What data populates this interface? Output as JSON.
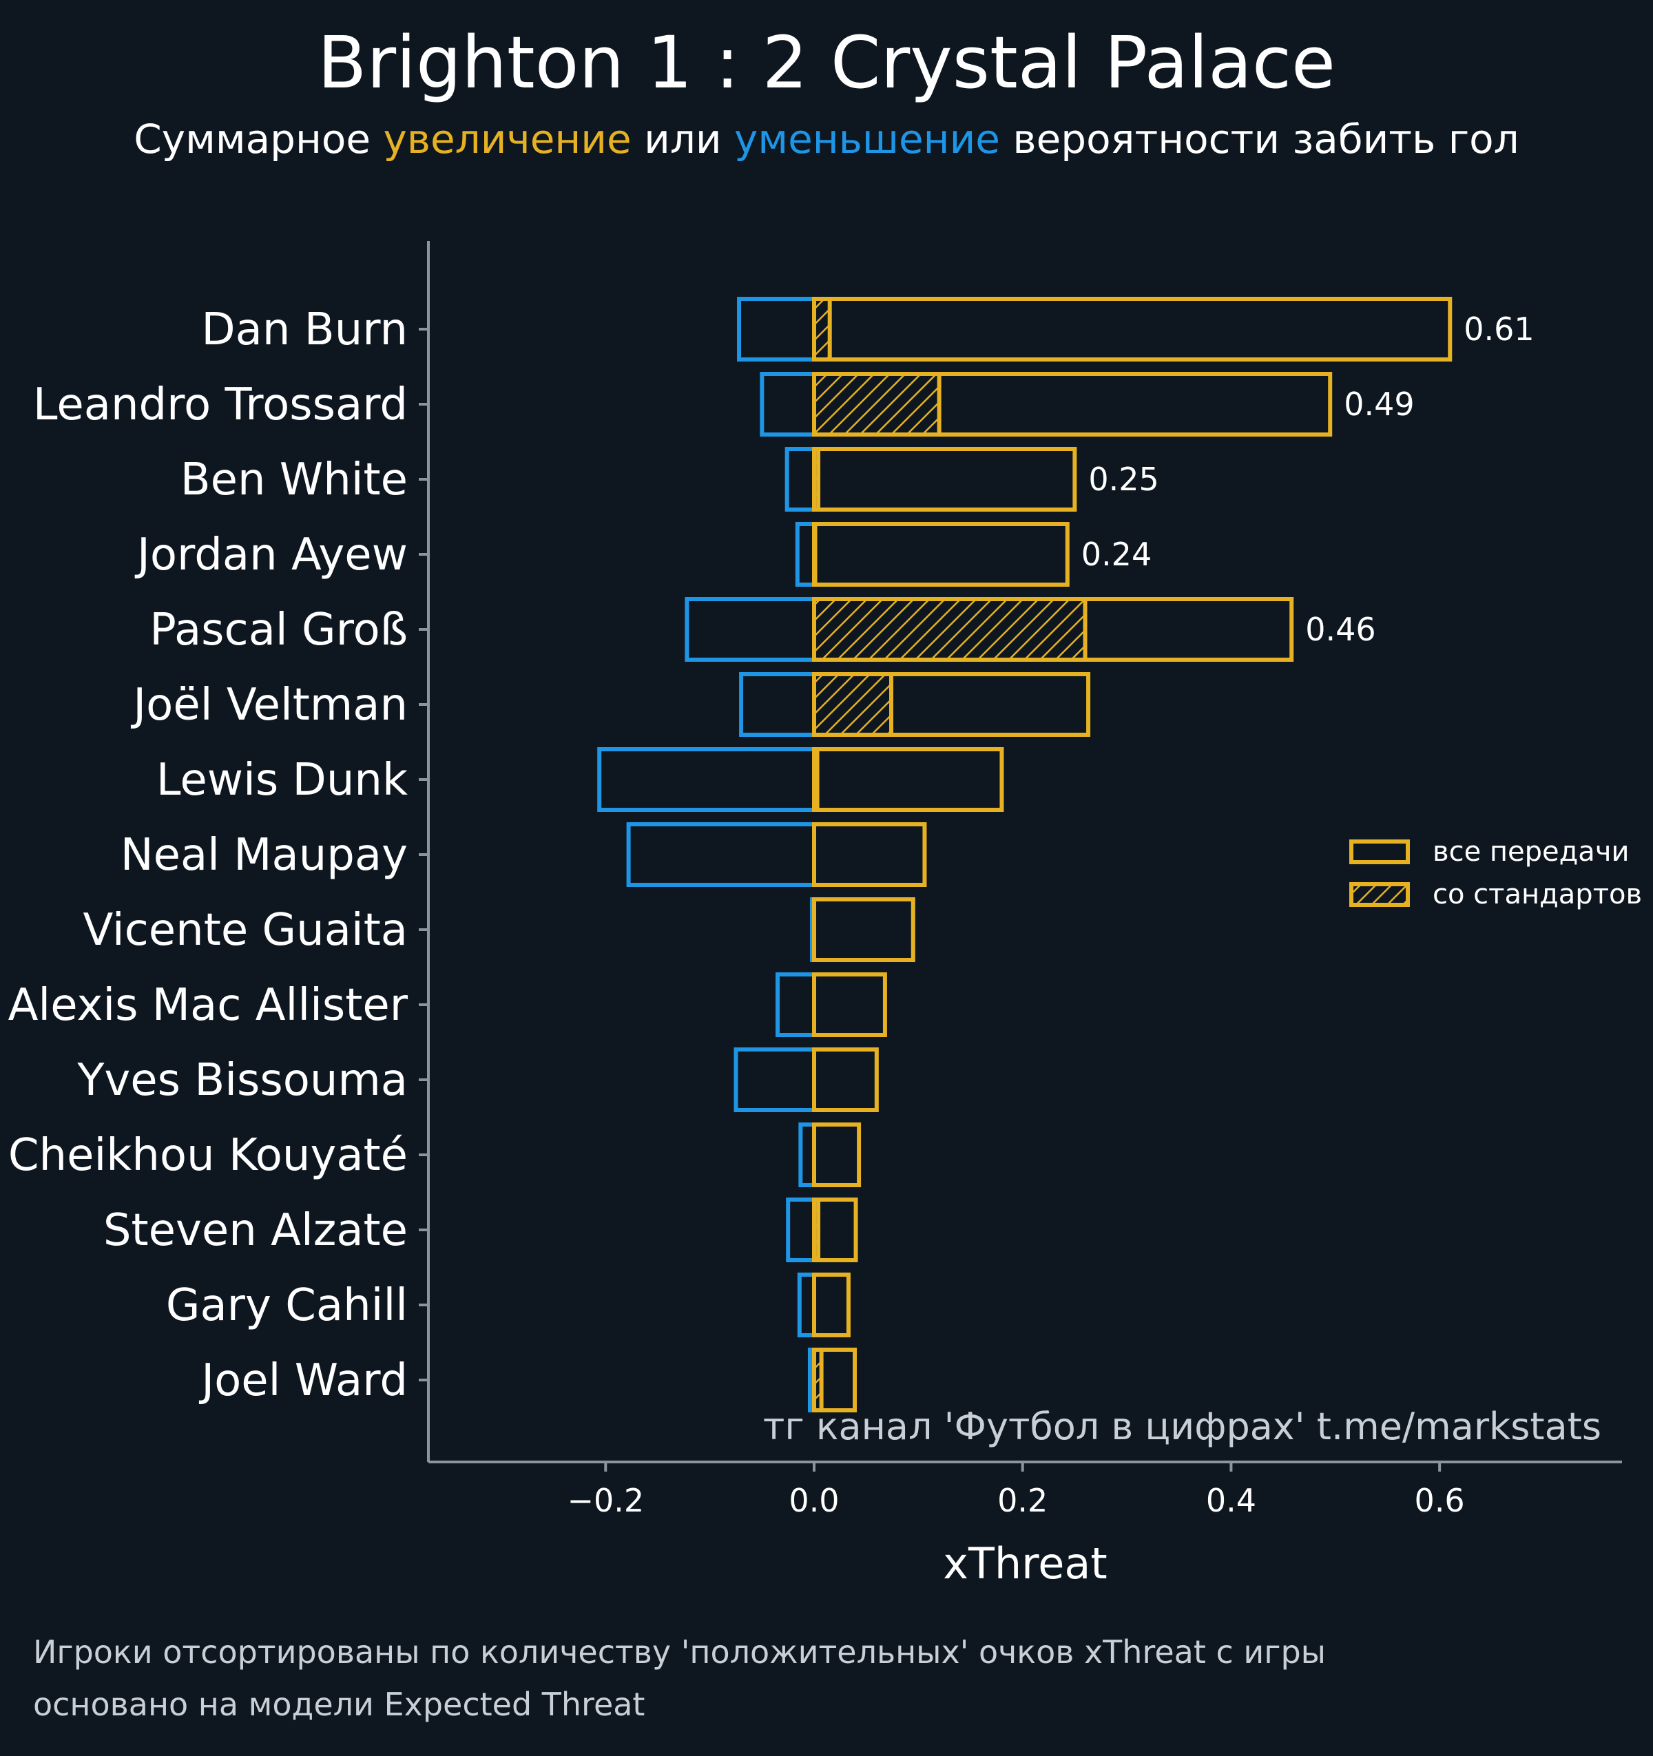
{
  "header": {
    "title": "Brighton 1 : 2 Crystal Palace",
    "subtitle_pre": "Суммарное ",
    "subtitle_pos": "увеличение",
    "subtitle_mid": " или ",
    "subtitle_neg": "уменьшение",
    "subtitle_post": " вероятности забить гол"
  },
  "notes": {
    "line1": "Игроки отсортированы по количеству 'положительных' очков xThreat с игры",
    "line2": "основано на модели Expected Threat"
  },
  "colors": {
    "background": "#0e1720",
    "positive": "#e6b223",
    "negative": "#1f95e6",
    "axis": "#8a969f",
    "text": "#ffffff"
  },
  "chart_data": {
    "type": "bar",
    "orientation": "horizontal",
    "xlabel": "xThreat",
    "xlim": [
      -0.37,
      0.775
    ],
    "xticks": [
      -0.2,
      0.0,
      0.2,
      0.4,
      0.6
    ],
    "xtick_labels": [
      "−0.2",
      "0.0",
      "0.2",
      "0.4",
      "0.6"
    ],
    "watermark": "тг канал 'Футбол в цифрах'  t.me/markstats",
    "legend": {
      "placement": "right",
      "items": [
        {
          "label": "все передачи",
          "hatched": false
        },
        {
          "label": "со стандартов",
          "hatched": true
        }
      ]
    },
    "categories": [
      "Dan Burn",
      "Leandro Trossard",
      "Ben White",
      "Jordan Ayew",
      "Pascal Groß",
      "Joël Veltman",
      "Lewis Dunk",
      "Neal Maupay",
      "Vicente Guaita",
      "Alexis Mac Allister",
      "Yves Bissouma",
      "Cheikhou Kouyaté",
      "Steven Alzate",
      "Gary Cahill",
      "Joel Ward"
    ],
    "series": [
      {
        "name": "все передачи",
        "kind": "positive",
        "values": [
          0.61,
          0.495,
          0.25,
          0.243,
          0.458,
          0.263,
          0.18,
          0.106,
          0.095,
          0.068,
          0.06,
          0.043,
          0.04,
          0.033,
          0.039
        ]
      },
      {
        "name": "со стандартов",
        "kind": "positive-set-pieces",
        "values": [
          0.015,
          0.12,
          0.004,
          0.001,
          0.26,
          0.074,
          0.003,
          0.0,
          0.0,
          0.0,
          0.0,
          0.0,
          0.004,
          0.0,
          0.007
        ]
      },
      {
        "kind": "negative",
        "values": [
          -0.072,
          -0.05,
          -0.026,
          -0.016,
          -0.122,
          -0.07,
          -0.206,
          -0.178,
          -0.002,
          -0.035,
          -0.075,
          -0.013,
          -0.025,
          -0.014,
          -0.004
        ]
      }
    ],
    "value_labels": [
      {
        "category": "Dan Burn",
        "text": "0.61"
      },
      {
        "category": "Leandro Trossard",
        "text": "0.49"
      },
      {
        "category": "Ben White",
        "text": "0.25"
      },
      {
        "category": "Jordan Ayew",
        "text": "0.24"
      },
      {
        "category": "Pascal Groß",
        "text": "0.46"
      }
    ]
  }
}
